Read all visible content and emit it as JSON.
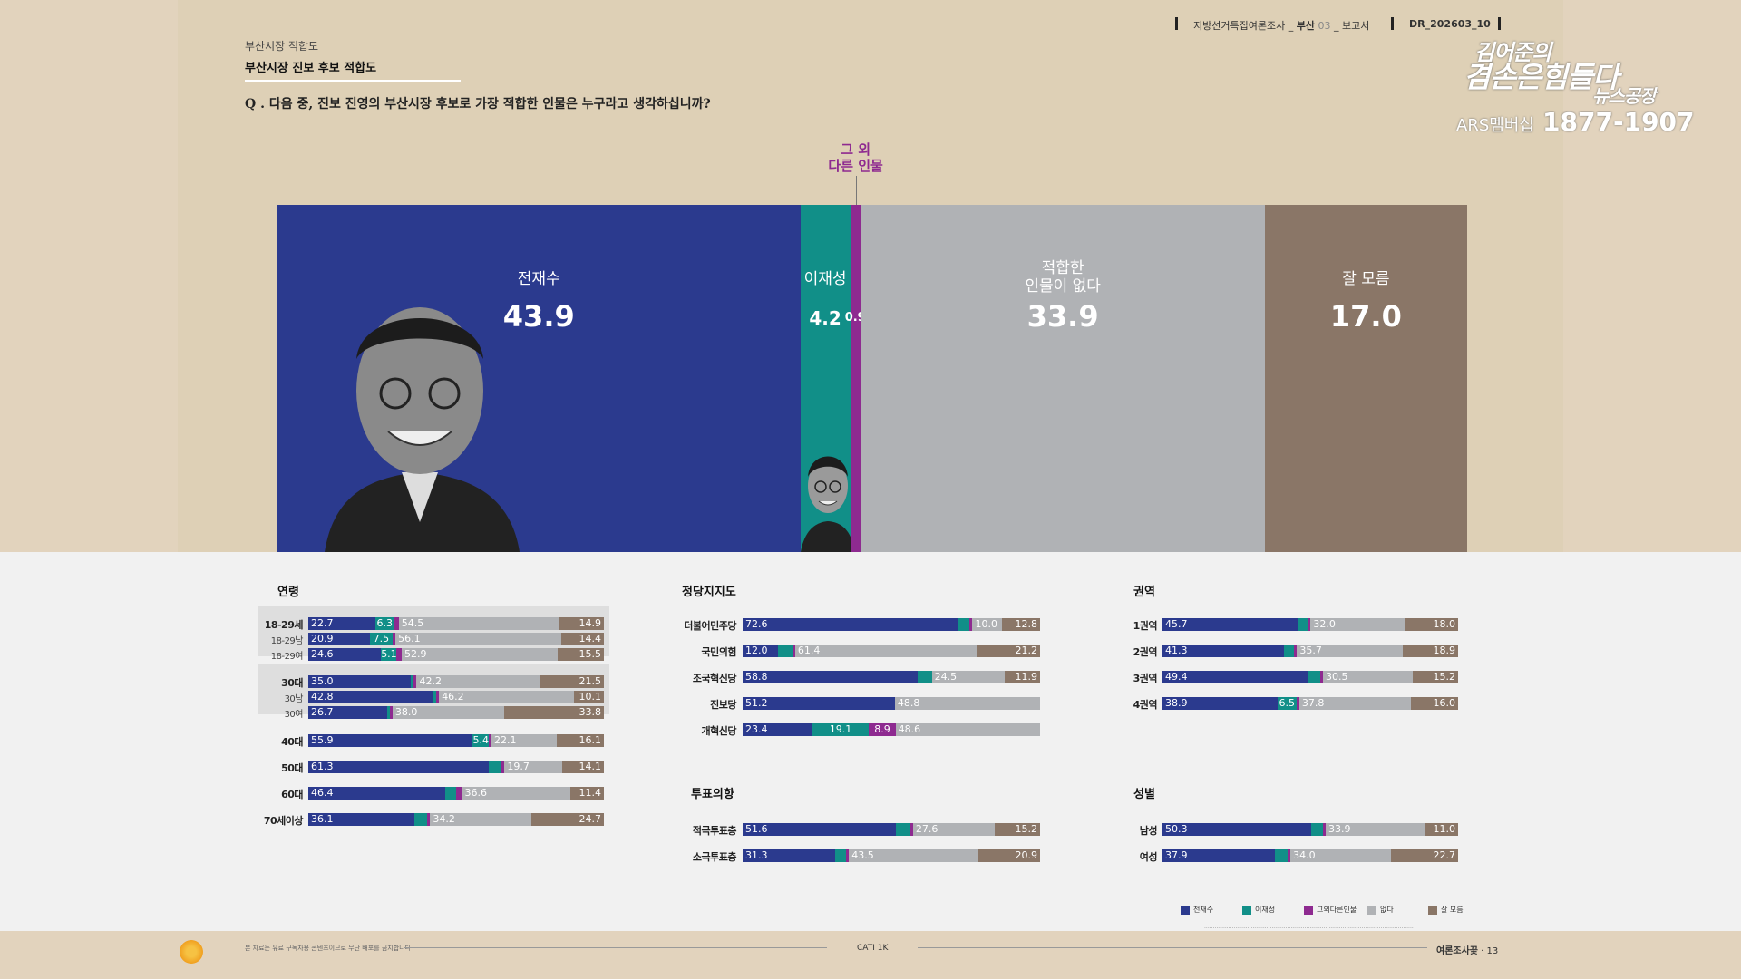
{
  "header": {
    "survey": "지방선거특집여론조사",
    "region": "부산",
    "num": "03",
    "report": "보고서",
    "code": "DR_202603_10"
  },
  "brand": {
    "line1": "김어준의",
    "line2": "겸손은힘들다",
    "line3": "뉴스공장",
    "ars_label": "ARS멤버십",
    "ars_number": "1877-1907"
  },
  "section": {
    "small": "부산시장 적합도",
    "title": "부산시장 진보 후보 적합도"
  },
  "question": "Q . 다음 중, 진보 진영의 부산시장 후보로 가장 적합한 인물은 누구라고 생각하십니까?",
  "colors": {
    "c1": "#2b3a8e",
    "c2": "#118f88",
    "c3": "#8e2a90",
    "c4": "#b0b2b5",
    "c5": "#8a7667"
  },
  "chart_data": [
    {
      "type": "bar",
      "orientation": "horizontal-stacked-100",
      "categories": [
        "전재수",
        "이재성",
        "그 외 다른 인물",
        "적합한 인물이 없다",
        "잘 모름"
      ],
      "values": [
        43.9,
        4.2,
        0.9,
        33.9,
        17.0
      ],
      "value_labels": [
        "43.9",
        "4.2",
        "0.9",
        "33.9",
        "17.0"
      ],
      "label_lines": [
        [
          "전재수"
        ],
        [
          "이재성"
        ],
        [
          "그 외",
          "다른 인물"
        ],
        [
          "적합한",
          "인물이 없다"
        ],
        [
          "잘 모름"
        ]
      ]
    },
    {
      "type": "bar",
      "orientation": "horizontal-stacked-100",
      "group": "연령",
      "rows": [
        {
          "label": "18-29세",
          "values": [
            22.7,
            6.3,
            1.6,
            54.5,
            14.9
          ],
          "bold": true,
          "box": 0
        },
        {
          "label": "18-29남",
          "values": [
            20.9,
            7.5,
            1.1,
            56.1,
            14.4
          ],
          "bold": false,
          "box": 0
        },
        {
          "label": "18-29여",
          "values": [
            24.6,
            5.1,
            1.9,
            52.9,
            15.5
          ],
          "bold": false,
          "box": 0
        },
        {
          "label": "30대",
          "values": [
            35.0,
            0.8,
            0.5,
            42.2,
            21.5
          ],
          "bold": true,
          "box": 1
        },
        {
          "label": "30남",
          "values": [
            42.8,
            0.5,
            0.4,
            46.2,
            10.1
          ],
          "bold": false,
          "box": 1
        },
        {
          "label": "30여",
          "values": [
            26.7,
            1.0,
            0.5,
            38.0,
            33.8
          ],
          "bold": false,
          "box": 1
        },
        {
          "label": "40대",
          "values": [
            55.9,
            5.4,
            0.5,
            22.1,
            16.1
          ],
          "bold": true
        },
        {
          "label": "50대",
          "values": [
            61.3,
            4.5,
            0.4,
            19.7,
            14.1
          ],
          "bold": true
        },
        {
          "label": "60대",
          "values": [
            46.4,
            3.5,
            2.1,
            36.6,
            11.4
          ],
          "bold": true
        },
        {
          "label": "70세이상",
          "values": [
            36.1,
            4.3,
            0.7,
            34.2,
            24.7
          ],
          "bold": true
        }
      ],
      "shown": [
        [
          1,
          1,
          0,
          1,
          1
        ],
        [
          1,
          1,
          0,
          1,
          1
        ],
        [
          1,
          1,
          0,
          1,
          1
        ],
        [
          1,
          0,
          0,
          1,
          1
        ],
        [
          1,
          0,
          0,
          1,
          1
        ],
        [
          1,
          0,
          0,
          1,
          1
        ],
        [
          1,
          1,
          0,
          1,
          1
        ],
        [
          1,
          0,
          0,
          1,
          1
        ],
        [
          1,
          0,
          0,
          1,
          1
        ],
        [
          1,
          0,
          0,
          1,
          1
        ]
      ]
    },
    {
      "type": "bar",
      "orientation": "horizontal-stacked-100",
      "group": "정당지지도",
      "rows": [
        {
          "label": "더불어민주당",
          "values": [
            72.6,
            4.0,
            0.6,
            10.0,
            12.8
          ]
        },
        {
          "label": "국민의힘",
          "values": [
            12.0,
            4.8,
            0.6,
            61.4,
            21.2
          ]
        },
        {
          "label": "조국혁신당",
          "values": [
            58.8,
            4.8,
            0.0,
            24.5,
            11.9
          ]
        },
        {
          "label": "진보당",
          "values": [
            51.2,
            0.0,
            0.0,
            48.8,
            0.0
          ]
        },
        {
          "label": "개혁신당",
          "values": [
            23.4,
            19.1,
            8.9,
            48.6,
            0.0
          ]
        }
      ],
      "shown": [
        [
          1,
          0,
          0,
          1,
          1
        ],
        [
          1,
          0,
          0,
          1,
          1
        ],
        [
          1,
          0,
          0,
          1,
          1
        ],
        [
          1,
          0,
          0,
          1,
          0
        ],
        [
          1,
          1,
          1,
          1,
          0
        ]
      ]
    },
    {
      "type": "bar",
      "orientation": "horizontal-stacked-100",
      "group": "투표의향",
      "rows": [
        {
          "label": "적극투표층",
          "values": [
            51.6,
            4.9,
            0.7,
            27.6,
            15.2
          ]
        },
        {
          "label": "소극투표층",
          "values": [
            31.3,
            3.6,
            0.7,
            43.5,
            20.9
          ]
        }
      ],
      "shown": [
        [
          1,
          0,
          0,
          1,
          1
        ],
        [
          1,
          0,
          0,
          1,
          1
        ]
      ]
    },
    {
      "type": "bar",
      "orientation": "horizontal-stacked-100",
      "group": "권역",
      "rows": [
        {
          "label": "1권역",
          "values": [
            45.7,
            3.6,
            0.7,
            32.0,
            18.0
          ]
        },
        {
          "label": "2권역",
          "values": [
            41.3,
            3.4,
            0.7,
            35.7,
            18.9
          ]
        },
        {
          "label": "3권역",
          "values": [
            49.4,
            4.0,
            0.9,
            30.5,
            15.2
          ]
        },
        {
          "label": "4권역",
          "values": [
            38.9,
            6.5,
            0.8,
            37.8,
            16.0
          ]
        }
      ],
      "shown": [
        [
          1,
          0,
          0,
          1,
          1
        ],
        [
          1,
          0,
          0,
          1,
          1
        ],
        [
          1,
          0,
          0,
          1,
          1
        ],
        [
          1,
          1,
          0,
          1,
          1
        ]
      ]
    },
    {
      "type": "bar",
      "orientation": "horizontal-stacked-100",
      "group": "성별",
      "rows": [
        {
          "label": "남성",
          "values": [
            50.3,
            4.1,
            0.7,
            33.9,
            11.0
          ]
        },
        {
          "label": "여성",
          "values": [
            37.9,
            4.3,
            1.1,
            34.0,
            22.7
          ]
        }
      ],
      "shown": [
        [
          1,
          0,
          0,
          1,
          1
        ],
        [
          1,
          0,
          0,
          1,
          1
        ]
      ]
    }
  ],
  "legend": [
    "전재수",
    "이재성",
    "그외다른인물",
    "없다",
    "잘 모름"
  ],
  "footer": {
    "disclaimer": "본 자료는 유료 구독자용 콘텐츠이므로 무단 배포를 금지합니다",
    "method": "CATI 1K",
    "brand": "여론조사꽃",
    "page": "13"
  }
}
